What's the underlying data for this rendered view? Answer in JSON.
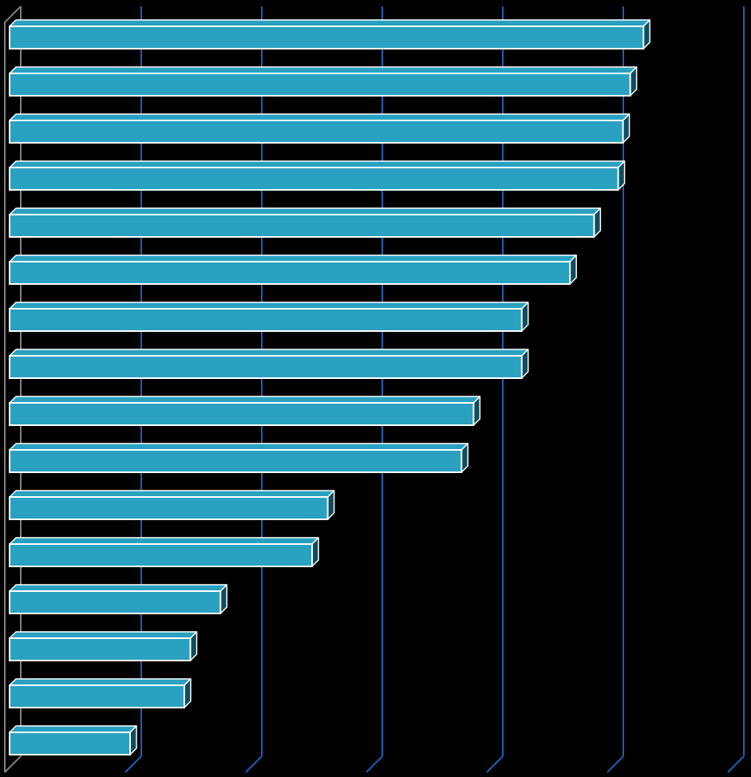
{
  "chart_data": {
    "type": "bar",
    "orientation": "horizontal",
    "style": "3d",
    "title": "",
    "xlabel": "",
    "ylabel": "",
    "xlim": [
      0,
      6
    ],
    "grid": true,
    "legend": "none",
    "values": [
      5.26,
      5.15,
      5.09,
      5.05,
      4.85,
      4.65,
      4.25,
      4.25,
      3.85,
      3.75,
      2.64,
      2.51,
      1.75,
      1.5,
      1.45,
      1.0
    ],
    "colors": {
      "background": "#000000",
      "bar_face": "#2aa1c0",
      "bar_top": "#2aa1c0",
      "bar_side": "#0f4d5e",
      "bar_edge": "#ffffff",
      "gridline": "#1c5fb5",
      "axis": "#808080"
    }
  }
}
